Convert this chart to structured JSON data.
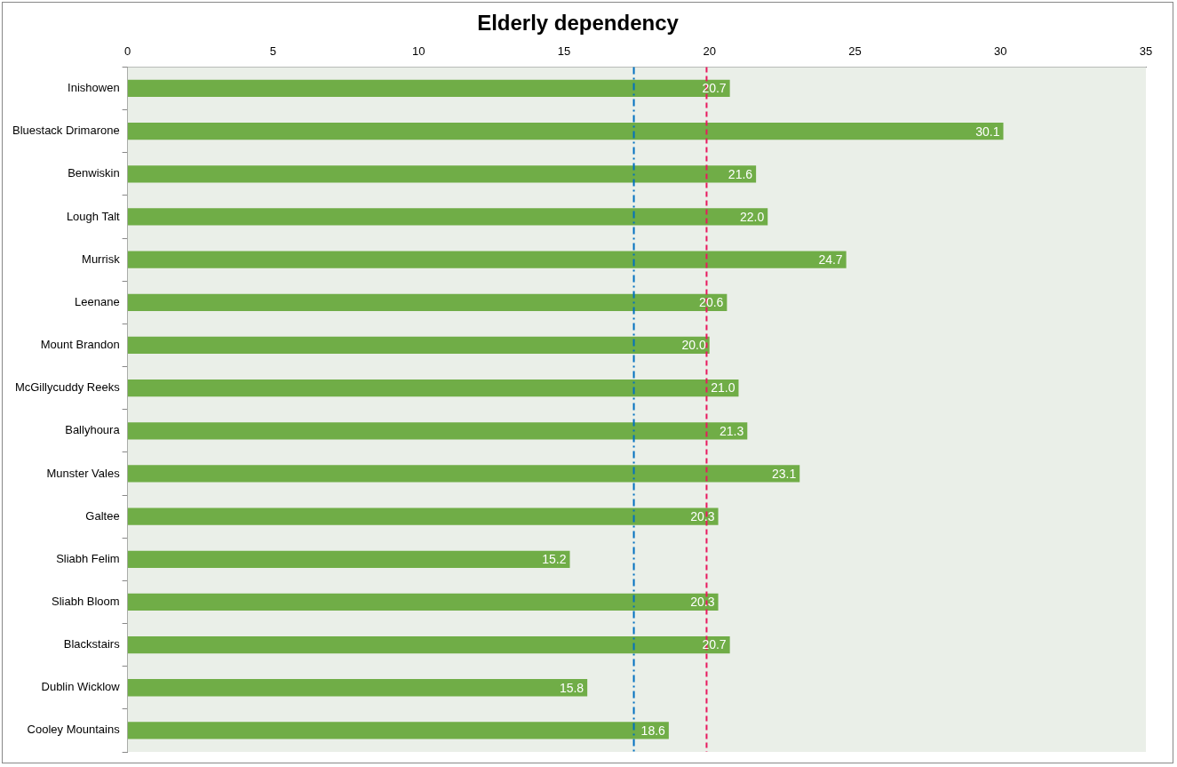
{
  "chart_data": {
    "type": "bar",
    "orientation": "horizontal",
    "title": "Elderly dependency",
    "categories": [
      "Inishowen",
      "Bluestack Drimarone",
      "Benwiskin",
      "Lough Talt",
      "Murrisk",
      "Leenane",
      "Mount Brandon",
      "McGillycuddy Reeks",
      "Ballyhoura",
      "Munster Vales",
      "Galtee",
      "Sliabh Felim",
      "Sliabh Bloom",
      "Blackstairs",
      "Dublin Wicklow",
      "Cooley Mountains"
    ],
    "values": [
      20.7,
      30.1,
      21.6,
      22.0,
      24.7,
      20.6,
      20.0,
      21.0,
      21.3,
      23.1,
      20.3,
      15.2,
      20.3,
      20.7,
      15.8,
      18.6
    ],
    "value_labels": [
      "20.7",
      "30.1",
      "21.6",
      "22.0",
      "24.7",
      "20.6",
      "20.0",
      "21.0",
      "21.3",
      "23.1",
      "20.3",
      "15.2",
      "20.3",
      "20.7",
      "15.8",
      "18.6"
    ],
    "color": "#70ad47",
    "xlim": [
      0,
      35
    ],
    "xticks": [
      0,
      5,
      10,
      15,
      20,
      25,
      30,
      35
    ],
    "ref_lines": [
      {
        "axis": "x",
        "value": 17.4,
        "color": "#0070c0",
        "line_style": "dashdot"
      },
      {
        "axis": "x",
        "value": 19.9,
        "color": "#e8195e",
        "line_style": "dashed"
      }
    ],
    "grid": false,
    "legend": false
  }
}
